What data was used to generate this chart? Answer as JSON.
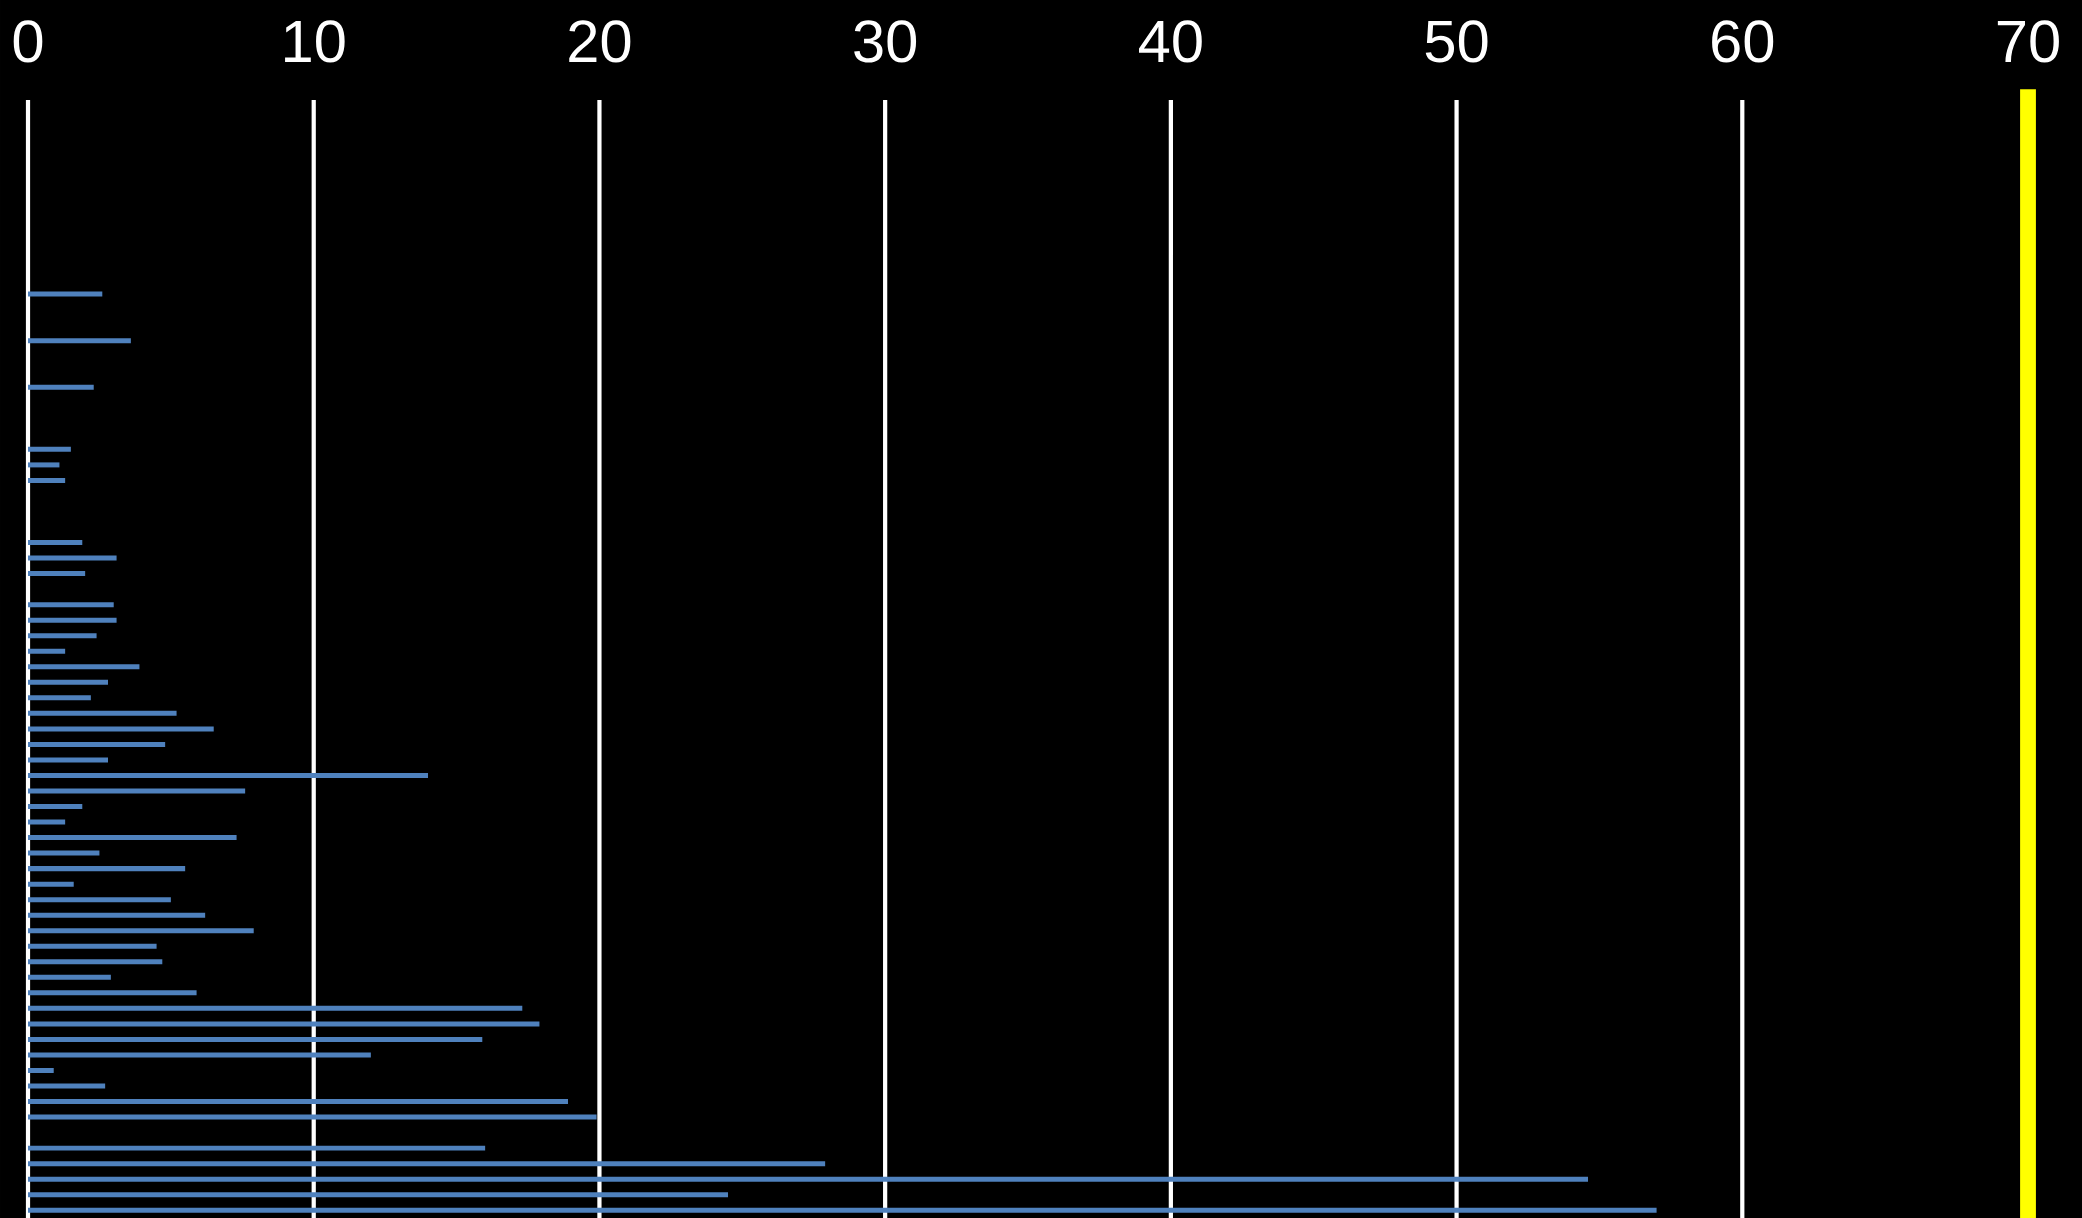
{
  "chart_data": {
    "type": "bar",
    "orientation": "horizontal",
    "categories": [
      null,
      null,
      null,
      null,
      null,
      null,
      null,
      null,
      null,
      null,
      null,
      null,
      null,
      null,
      null,
      null,
      null,
      null,
      null,
      null,
      null,
      null,
      null,
      null,
      null,
      null,
      null,
      null,
      null,
      null,
      null,
      null,
      null,
      null,
      null,
      null,
      null,
      null,
      null,
      null,
      null,
      null,
      null,
      null,
      null,
      null,
      null,
      null,
      null,
      null,
      null,
      null,
      null,
      null,
      null,
      null,
      null,
      null,
      null,
      null,
      null,
      null,
      null,
      null,
      null,
      null,
      null,
      null,
      null,
      null,
      null,
      null
    ],
    "values": [
      null,
      null,
      null,
      null,
      null,
      null,
      null,
      null,
      null,
      null,
      null,
      null,
      2.6,
      null,
      null,
      3.6,
      null,
      null,
      2.3,
      null,
      null,
      null,
      1.5,
      1.1,
      1.3,
      null,
      null,
      null,
      1.9,
      3.1,
      2.0,
      null,
      3.0,
      3.1,
      2.4,
      1.3,
      3.9,
      2.8,
      2.2,
      5.2,
      6.5,
      4.8,
      2.8,
      14.0,
      7.6,
      1.9,
      1.3,
      7.3,
      2.5,
      5.5,
      1.6,
      5.0,
      6.2,
      7.9,
      4.5,
      4.7,
      2.9,
      5.9,
      17.3,
      17.9,
      15.9,
      12.0,
      0.9,
      2.7,
      18.9,
      19.9,
      null,
      16.0,
      27.9,
      54.6,
      24.5,
      57.0
    ],
    "color": "#4f81bd",
    "xlim": [
      0,
      70
    ],
    "xticks": [
      0,
      10,
      20,
      30,
      40,
      50,
      60,
      70
    ],
    "grid": "x",
    "tick_labels": "x",
    "ref_lines": [
      {
        "axis": "x",
        "value": 70,
        "color": "#ffff00"
      }
    ]
  }
}
